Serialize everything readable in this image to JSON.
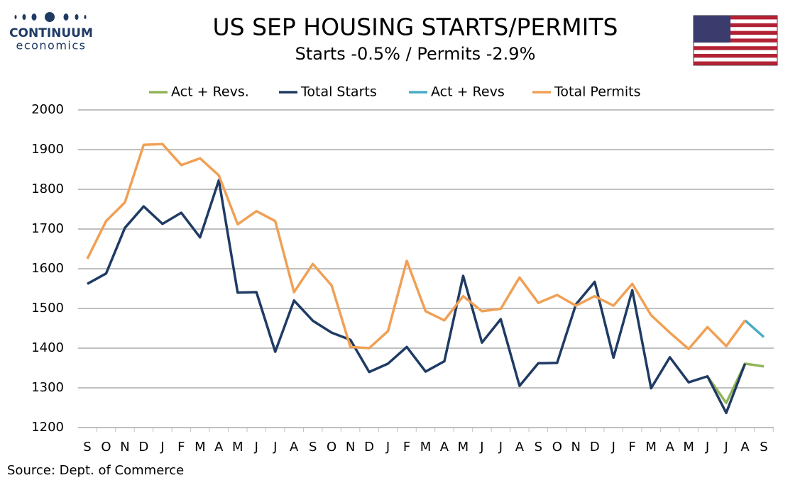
{
  "brand": {
    "name": "CONTINUUM",
    "tagline": "economics"
  },
  "chart_data": {
    "type": "line",
    "title": "US SEP HOUSING STARTS/PERMITS",
    "subtitle": "Starts  -0.5% / Permits -2.9%",
    "source": "Source: Dept. of Commerce",
    "categories": [
      "S",
      "O",
      "N",
      "D",
      "J",
      "F",
      "M",
      "A",
      "M",
      "J",
      "J",
      "A",
      "S",
      "O",
      "N",
      "D",
      "J",
      "F",
      "M",
      "A",
      "M",
      "J",
      "J",
      "A",
      "S",
      "O",
      "N",
      "D",
      "J",
      "F",
      "M",
      "A",
      "M",
      "J",
      "J",
      "A",
      "S"
    ],
    "series": [
      {
        "name": "Act + Revs.",
        "color": "#92b45a",
        "values": [
          null,
          null,
          null,
          null,
          null,
          null,
          null,
          null,
          null,
          null,
          null,
          null,
          null,
          null,
          null,
          null,
          null,
          null,
          null,
          null,
          null,
          null,
          null,
          null,
          null,
          null,
          null,
          null,
          null,
          null,
          null,
          null,
          null,
          1329,
          1262,
          1361,
          1354
        ]
      },
      {
        "name": "Total Starts",
        "color": "#1f3b64",
        "values": [
          1562,
          1588,
          1703,
          1757,
          1713,
          1741,
          1679,
          1823,
          1540,
          1541,
          1391,
          1520,
          1469,
          1439,
          1421,
          1340,
          1361,
          1403,
          1341,
          1367,
          1582,
          1414,
          1473,
          1305,
          1362,
          1363,
          1510,
          1567,
          1376,
          1546,
          1299,
          1377,
          1314,
          1329,
          1237,
          1361,
          null
        ]
      },
      {
        "name": "Act + Revs",
        "color": "#4bacc6",
        "values": [
          null,
          null,
          null,
          null,
          null,
          null,
          null,
          null,
          null,
          null,
          null,
          null,
          null,
          null,
          null,
          null,
          null,
          null,
          null,
          null,
          null,
          null,
          null,
          null,
          null,
          null,
          null,
          null,
          null,
          null,
          null,
          null,
          null,
          null,
          null,
          1470,
          1428
        ]
      },
      {
        "name": "Total Permits",
        "color": "#f0a055",
        "values": [
          1625,
          1720,
          1767,
          1912,
          1914,
          1861,
          1878,
          1835,
          1712,
          1745,
          1720,
          1541,
          1612,
          1558,
          1403,
          1400,
          1443,
          1620,
          1493,
          1470,
          1531,
          1493,
          1499,
          1578,
          1514,
          1534,
          1507,
          1531,
          1507,
          1562,
          1483,
          1439,
          1398,
          1453,
          1405,
          1470,
          null
        ]
      }
    ],
    "ylim": [
      1200,
      2000
    ],
    "yticks": [
      1200,
      1300,
      1400,
      1500,
      1600,
      1700,
      1800,
      1900,
      2000
    ],
    "grid": true,
    "legend": "top"
  }
}
